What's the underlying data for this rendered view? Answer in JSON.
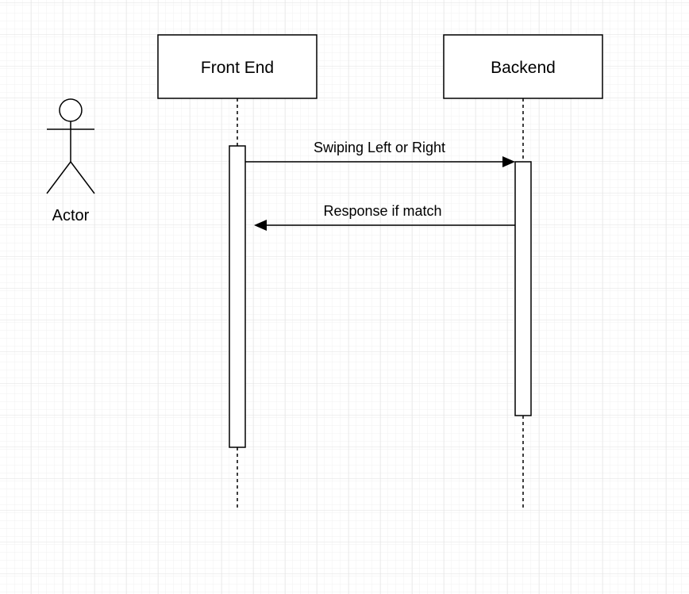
{
  "colors": {
    "grid_minor": "#f0f0f0",
    "grid_major": "#e2e2e2",
    "stroke": "#000000",
    "fill": "#ffffff"
  },
  "actor": {
    "label": "Actor",
    "icon": "stick-figure-icon"
  },
  "lifelines": [
    {
      "label": "Front End"
    },
    {
      "label": "Backend"
    }
  ],
  "messages": [
    {
      "label": "Swiping Left or Right",
      "from": "Front End",
      "to": "Backend"
    },
    {
      "label": "Response if match",
      "from": "Backend",
      "to": "Front End"
    }
  ]
}
